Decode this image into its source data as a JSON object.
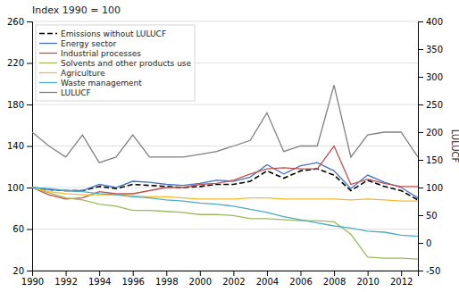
{
  "chart_data": {
    "type": "line",
    "title": "Index 1990 = 100",
    "y2label": "LULUCF",
    "x": [
      1990,
      1991,
      1992,
      1993,
      1994,
      1995,
      1996,
      1997,
      1998,
      1999,
      2000,
      2001,
      2002,
      2003,
      2004,
      2005,
      2006,
      2007,
      2008,
      2009,
      2010,
      2011,
      2012,
      2013
    ],
    "xlim": [
      1990,
      2013
    ],
    "xticks": [
      1990,
      1992,
      1994,
      1996,
      1998,
      2000,
      2002,
      2004,
      2006,
      2008,
      2010,
      2012
    ],
    "ylim": [
      20,
      260
    ],
    "yticks": [
      20,
      60,
      100,
      140,
      180,
      220,
      260
    ],
    "y2lim": [
      -50,
      400
    ],
    "y2ticks": [
      400,
      350,
      300,
      250,
      200,
      150,
      100,
      50,
      0,
      -50
    ],
    "grid": true,
    "legend": "upper-left",
    "series": [
      {
        "name": "Emissions without LULUCF",
        "color": "#000000",
        "line_style": "dashed",
        "values": [
          100,
          98,
          97,
          97,
          101,
          99,
          103,
          102,
          101,
          100,
          101,
          103,
          103,
          106,
          116,
          109,
          116,
          118,
          112,
          97,
          107,
          101,
          97,
          88
        ]
      },
      {
        "name": "Energy sector",
        "color": "#4472C4",
        "values": [
          100,
          98,
          97,
          97,
          103,
          100,
          106,
          105,
          103,
          102,
          104,
          107,
          106,
          110,
          122,
          113,
          121,
          124,
          116,
          99,
          112,
          105,
          100,
          90
        ]
      },
      {
        "name": "Industrial processes",
        "color": "#C0504D",
        "values": [
          100,
          93,
          89,
          90,
          96,
          94,
          94,
          97,
          100,
          100,
          103,
          104,
          107,
          113,
          118,
          119,
          118,
          118,
          140,
          103,
          108,
          104,
          101,
          101
        ]
      },
      {
        "name": "Solvents and other products use",
        "color": "#9BBB59",
        "values": [
          100,
          95,
          90,
          88,
          84,
          82,
          78,
          78,
          77,
          76,
          74,
          74,
          73,
          70,
          70,
          69,
          68,
          68,
          67,
          55,
          33,
          32,
          32,
          31
        ]
      },
      {
        "name": "Agriculture",
        "color": "#F7B92C",
        "values": [
          100,
          96,
          94,
          93,
          93,
          93,
          92,
          91,
          91,
          90,
          89,
          89,
          89,
          90,
          90,
          89,
          89,
          89,
          89,
          88,
          89,
          88,
          87,
          87
        ]
      },
      {
        "name": "Waste management",
        "color": "#4BACC6",
        "values": [
          100,
          99,
          97,
          96,
          94,
          93,
          91,
          90,
          88,
          87,
          85,
          84,
          82,
          79,
          76,
          72,
          69,
          66,
          63,
          61,
          58,
          57,
          54,
          53
        ]
      },
      {
        "name": "LULUCF",
        "color": "#808080",
        "axis": "y2",
        "values": [
          200,
          175,
          155,
          195,
          145,
          155,
          195,
          155,
          155,
          155,
          160,
          165,
          175,
          185,
          235,
          165,
          175,
          175,
          285,
          155,
          195,
          200,
          200,
          155
        ]
      }
    ]
  }
}
